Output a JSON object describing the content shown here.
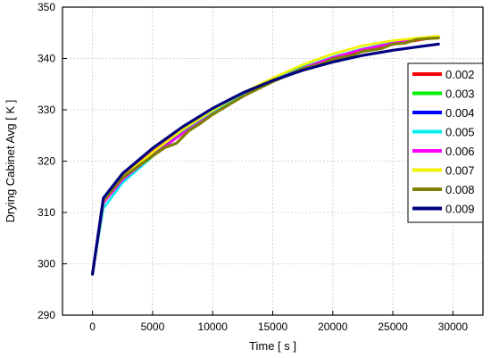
{
  "chart_data": {
    "type": "line",
    "xlabel": "Time [ s ]",
    "ylabel": "Drying Cabinet Avg [ K ]",
    "xlim": [
      -2500,
      32500
    ],
    "ylim": [
      290,
      350
    ],
    "xticks": [
      0,
      5000,
      10000,
      15000,
      20000,
      25000,
      30000
    ],
    "yticks": [
      290,
      300,
      310,
      320,
      330,
      340,
      350
    ],
    "grid": true,
    "legend_position": "right",
    "series": [
      {
        "name": "0.002",
        "color": "#ff0000",
        "x": [
          0,
          900,
          2500,
          5000,
          7500,
          10000,
          12500,
          15000,
          17500,
          20000,
          22500,
          25000,
          27500,
          28800
        ],
        "y": [
          298,
          312.3,
          317.0,
          321.8,
          326.2,
          329.8,
          333.0,
          335.6,
          337.9,
          339.8,
          341.4,
          342.7,
          343.7,
          344.1
        ]
      },
      {
        "name": "0.003",
        "color": "#00ee00",
        "x": [
          0,
          900,
          2500,
          5000,
          7500,
          10000,
          12500,
          15000,
          17500,
          20000,
          22500,
          25000,
          27500,
          28800
        ],
        "y": [
          298,
          312.1,
          316.8,
          321.6,
          326.0,
          329.7,
          333.0,
          335.8,
          338.3,
          340.3,
          341.9,
          343.1,
          343.9,
          344.3
        ]
      },
      {
        "name": "0.004",
        "color": "#0000ff",
        "x": [
          0,
          900,
          2500,
          5000,
          7500,
          10000,
          12500,
          15000,
          17500,
          20000,
          22500,
          25000,
          27500,
          28800
        ],
        "y": [
          298,
          312.0,
          316.7,
          321.5,
          325.9,
          329.6,
          332.9,
          335.7,
          338.2,
          340.2,
          341.8,
          343.0,
          343.9,
          344.2
        ]
      },
      {
        "name": "0.005",
        "color": "#00eeee",
        "x": [
          0,
          900,
          2500,
          5000,
          7500,
          10000,
          12500,
          15000,
          17500,
          20000,
          22500,
          25000,
          27500,
          28800
        ],
        "y": [
          298,
          310.8,
          315.8,
          320.9,
          325.5,
          329.4,
          332.8,
          335.7,
          338.2,
          340.3,
          341.9,
          343.1,
          343.9,
          344.2
        ]
      },
      {
        "name": "0.006",
        "color": "#ff00ff",
        "x": [
          0,
          900,
          2500,
          5000,
          7500,
          10000,
          12500,
          15000,
          17500,
          20000,
          22500,
          25000,
          27500,
          28800
        ],
        "y": [
          298,
          311.8,
          316.4,
          321.1,
          325.4,
          329.2,
          332.6,
          335.6,
          338.1,
          340.2,
          341.8,
          343.0,
          343.9,
          344.2
        ]
      },
      {
        "name": "0.007",
        "color": "#f2f200",
        "x": [
          0,
          900,
          2500,
          5000,
          7500,
          10000,
          12500,
          15000,
          17500,
          20000,
          22500,
          25000,
          27500,
          28800
        ],
        "y": [
          298,
          312.2,
          316.9,
          321.7,
          326.1,
          329.9,
          333.3,
          336.2,
          338.8,
          340.9,
          342.5,
          343.5,
          344.1,
          344.4
        ]
      },
      {
        "name": "0.008",
        "color": "#808000",
        "x": [
          0,
          900,
          2500,
          5000,
          6000,
          7000,
          8000,
          9000,
          10000,
          12500,
          15000,
          16500,
          17500,
          19000,
          20000,
          21500,
          22500,
          24000,
          25000,
          26000,
          27000,
          28000,
          28800
        ],
        "y": [
          298,
          312.4,
          316.8,
          321.0,
          322.6,
          323.5,
          325.9,
          327.4,
          329.1,
          332.6,
          335.5,
          337.0,
          338.0,
          338.9,
          339.9,
          340.5,
          341.4,
          341.9,
          342.8,
          343.0,
          343.7,
          343.9,
          344.0
        ]
      },
      {
        "name": "0.009",
        "color": "#000080",
        "x": [
          0,
          900,
          2500,
          5000,
          7500,
          10000,
          12500,
          15000,
          17500,
          20000,
          22500,
          25000,
          27500,
          28800
        ],
        "y": [
          298,
          312.8,
          317.6,
          322.5,
          326.7,
          330.3,
          333.3,
          335.7,
          337.7,
          339.3,
          340.6,
          341.6,
          342.4,
          342.8
        ]
      }
    ]
  }
}
